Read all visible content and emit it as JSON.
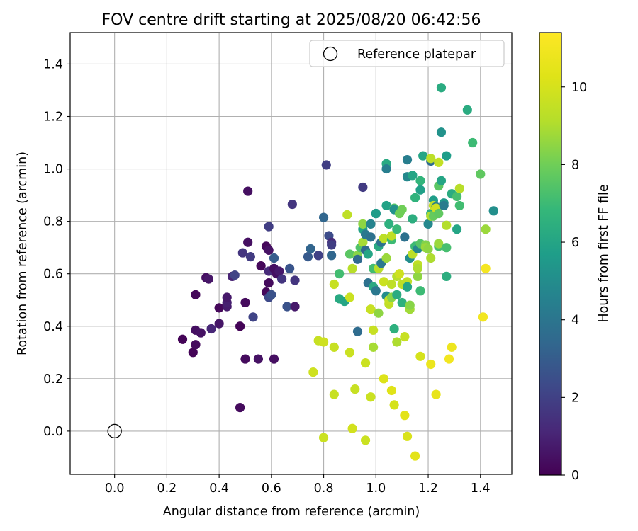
{
  "chart_data": {
    "type": "scatter",
    "title": "FOV centre drift starting at 2025/08/20 06:42:56",
    "xlabel": "Angular distance from reference (arcmin)",
    "ylabel": "Rotation from reference (arcmin)",
    "xlim": [
      -0.17,
      1.52
    ],
    "ylim": [
      -0.165,
      1.52
    ],
    "xticks": [
      0.0,
      0.2,
      0.4,
      0.6,
      0.8,
      1.0,
      1.2,
      1.4
    ],
    "yticks": [
      0.0,
      0.2,
      0.4,
      0.6,
      0.8,
      1.0,
      1.2,
      1.4
    ],
    "grid": true,
    "legend": {
      "location": "top-right",
      "entries": [
        {
          "label": "Reference platepar",
          "marker": "open-circle"
        }
      ]
    },
    "reference_point": {
      "x": 0.0,
      "y": 0.0
    },
    "colorbar": {
      "label": "Hours from first FF file",
      "colormap": "viridis",
      "range": [
        0,
        11.4
      ],
      "ticks": [
        0,
        2,
        4,
        6,
        8,
        10
      ]
    },
    "points": [
      {
        "x": 0.26,
        "y": 0.35,
        "c": 0.1
      },
      {
        "x": 0.3,
        "y": 0.3,
        "c": 0.1
      },
      {
        "x": 0.31,
        "y": 0.33,
        "c": 0.3
      },
      {
        "x": 0.31,
        "y": 0.385,
        "c": 0.4
      },
      {
        "x": 0.33,
        "y": 0.375,
        "c": 0.5
      },
      {
        "x": 0.31,
        "y": 0.52,
        "c": 0.2
      },
      {
        "x": 0.35,
        "y": 0.585,
        "c": 0.4
      },
      {
        "x": 0.36,
        "y": 0.58,
        "c": 0.6
      },
      {
        "x": 0.37,
        "y": 0.39,
        "c": 1.1
      },
      {
        "x": 0.4,
        "y": 0.47,
        "c": 0.2
      },
      {
        "x": 0.4,
        "y": 0.41,
        "c": 0.6
      },
      {
        "x": 0.43,
        "y": 0.475,
        "c": 0.8
      },
      {
        "x": 0.43,
        "y": 0.49,
        "c": 0.9
      },
      {
        "x": 0.43,
        "y": 0.51,
        "c": 0.7
      },
      {
        "x": 0.45,
        "y": 0.59,
        "c": 1.0
      },
      {
        "x": 0.46,
        "y": 0.595,
        "c": 2.1
      },
      {
        "x": 0.48,
        "y": 0.09,
        "c": 0.3
      },
      {
        "x": 0.48,
        "y": 0.4,
        "c": 0.1
      },
      {
        "x": 0.49,
        "y": 0.68,
        "c": 1.6
      },
      {
        "x": 0.5,
        "y": 0.275,
        "c": 0.3
      },
      {
        "x": 0.5,
        "y": 0.49,
        "c": 0.3
      },
      {
        "x": 0.51,
        "y": 0.915,
        "c": 0.4
      },
      {
        "x": 0.51,
        "y": 0.72,
        "c": 0.4
      },
      {
        "x": 0.52,
        "y": 0.665,
        "c": 1.8
      },
      {
        "x": 0.53,
        "y": 0.435,
        "c": 2.1
      },
      {
        "x": 0.55,
        "y": 0.275,
        "c": 0.5
      },
      {
        "x": 0.56,
        "y": 0.63,
        "c": 0.2
      },
      {
        "x": 0.58,
        "y": 0.705,
        "c": 0.2
      },
      {
        "x": 0.58,
        "y": 0.53,
        "c": 0.2
      },
      {
        "x": 0.59,
        "y": 0.565,
        "c": 0.3
      },
      {
        "x": 0.59,
        "y": 0.61,
        "c": 1.2
      },
      {
        "x": 0.59,
        "y": 0.69,
        "c": 0.5
      },
      {
        "x": 0.59,
        "y": 0.78,
        "c": 1.9
      },
      {
        "x": 0.59,
        "y": 0.51,
        "c": 2.3
      },
      {
        "x": 0.6,
        "y": 0.52,
        "c": 2.6
      },
      {
        "x": 0.61,
        "y": 0.275,
        "c": 0.4
      },
      {
        "x": 0.61,
        "y": 0.66,
        "c": 3.0
      },
      {
        "x": 0.61,
        "y": 0.62,
        "c": 0.4
      },
      {
        "x": 0.62,
        "y": 0.6,
        "c": 0.4
      },
      {
        "x": 0.63,
        "y": 0.61,
        "c": 0.7
      },
      {
        "x": 0.64,
        "y": 0.58,
        "c": 1.6
      },
      {
        "x": 0.66,
        "y": 0.475,
        "c": 2.6
      },
      {
        "x": 0.67,
        "y": 0.62,
        "c": 2.7
      },
      {
        "x": 0.68,
        "y": 0.865,
        "c": 1.6
      },
      {
        "x": 0.69,
        "y": 0.575,
        "c": 1.6
      },
      {
        "x": 0.69,
        "y": 0.475,
        "c": 0.7
      },
      {
        "x": 0.74,
        "y": 0.665,
        "c": 2.9
      },
      {
        "x": 0.75,
        "y": 0.695,
        "c": 3.3
      },
      {
        "x": 0.78,
        "y": 0.67,
        "c": 2.0
      },
      {
        "x": 0.8,
        "y": 0.815,
        "c": 3.4
      },
      {
        "x": 0.81,
        "y": 1.015,
        "c": 1.9
      },
      {
        "x": 0.82,
        "y": 0.745,
        "c": 2.4
      },
      {
        "x": 0.83,
        "y": 0.72,
        "c": 1.3
      },
      {
        "x": 0.83,
        "y": 0.67,
        "c": 3.4
      },
      {
        "x": 0.83,
        "y": 0.71,
        "c": 1.9
      },
      {
        "x": 0.76,
        "y": 0.225,
        "c": 9.8
      },
      {
        "x": 0.78,
        "y": 0.345,
        "c": 9.6
      },
      {
        "x": 0.8,
        "y": 0.34,
        "c": 9.8
      },
      {
        "x": 0.8,
        "y": -0.025,
        "c": 9.7
      },
      {
        "x": 0.84,
        "y": 0.32,
        "c": 9.6
      },
      {
        "x": 0.84,
        "y": 0.14,
        "c": 9.6
      },
      {
        "x": 0.84,
        "y": 0.56,
        "c": 9.6
      },
      {
        "x": 0.86,
        "y": 0.505,
        "c": 6.2
      },
      {
        "x": 0.86,
        "y": 0.6,
        "c": 7.1
      },
      {
        "x": 0.88,
        "y": 0.495,
        "c": 6.0
      },
      {
        "x": 0.89,
        "y": 0.825,
        "c": 9.4
      },
      {
        "x": 0.9,
        "y": 0.675,
        "c": 7.6
      },
      {
        "x": 0.9,
        "y": 0.3,
        "c": 9.7
      },
      {
        "x": 0.9,
        "y": 0.51,
        "c": 9.7
      },
      {
        "x": 0.91,
        "y": 0.01,
        "c": 9.9
      },
      {
        "x": 0.91,
        "y": 0.62,
        "c": 9.2
      },
      {
        "x": 0.92,
        "y": 0.16,
        "c": 9.6
      },
      {
        "x": 0.93,
        "y": 0.38,
        "c": 3.6
      },
      {
        "x": 0.93,
        "y": 0.67,
        "c": 8.4
      },
      {
        "x": 0.93,
        "y": 0.655,
        "c": 3.5
      },
      {
        "x": 0.94,
        "y": 0.7,
        "c": 7.4
      },
      {
        "x": 0.95,
        "y": 0.93,
        "c": 1.8
      },
      {
        "x": 0.95,
        "y": 0.72,
        "c": 8.9
      },
      {
        "x": 0.95,
        "y": 0.77,
        "c": 5.9
      },
      {
        "x": 0.95,
        "y": 0.79,
        "c": 8.5
      },
      {
        "x": 0.96,
        "y": 0.75,
        "c": 4.1
      },
      {
        "x": 0.96,
        "y": -0.035,
        "c": 9.7
      },
      {
        "x": 0.96,
        "y": 0.26,
        "c": 9.7
      },
      {
        "x": 0.96,
        "y": 0.69,
        "c": 3.5
      },
      {
        "x": 0.97,
        "y": 0.565,
        "c": 3.8
      },
      {
        "x": 0.97,
        "y": 0.675,
        "c": 6.0
      },
      {
        "x": 0.98,
        "y": 0.465,
        "c": 9.6
      },
      {
        "x": 0.98,
        "y": 0.13,
        "c": 9.7
      },
      {
        "x": 0.98,
        "y": 0.74,
        "c": 3.8
      },
      {
        "x": 0.98,
        "y": 0.79,
        "c": 4.6
      },
      {
        "x": 0.99,
        "y": 0.385,
        "c": 9.6
      },
      {
        "x": 0.99,
        "y": 0.32,
        "c": 8.9
      },
      {
        "x": 0.99,
        "y": 0.55,
        "c": 6.2
      },
      {
        "x": 0.99,
        "y": 0.62,
        "c": 7.1
      },
      {
        "x": 1.0,
        "y": 0.535,
        "c": 4.1
      },
      {
        "x": 1.0,
        "y": 0.83,
        "c": 3.6
      },
      {
        "x": 1.0,
        "y": 0.83,
        "c": 5.6
      },
      {
        "x": 1.01,
        "y": 0.62,
        "c": 9.2
      },
      {
        "x": 1.01,
        "y": 0.45,
        "c": 8.5
      },
      {
        "x": 1.01,
        "y": 0.705,
        "c": 6.2
      },
      {
        "x": 1.02,
        "y": 0.72,
        "c": 3.8
      },
      {
        "x": 1.02,
        "y": 0.64,
        "c": 4.1
      },
      {
        "x": 1.03,
        "y": 0.735,
        "c": 9.3
      },
      {
        "x": 1.03,
        "y": 0.57,
        "c": 9.7
      },
      {
        "x": 1.03,
        "y": 0.2,
        "c": 10.2
      },
      {
        "x": 1.04,
        "y": 1.02,
        "c": 6.2
      },
      {
        "x": 1.04,
        "y": 1.0,
        "c": 4.4
      },
      {
        "x": 1.04,
        "y": 0.515,
        "c": 5.0
      },
      {
        "x": 1.04,
        "y": 0.86,
        "c": 5.9
      },
      {
        "x": 1.04,
        "y": 0.66,
        "c": 8.7
      },
      {
        "x": 1.05,
        "y": 0.485,
        "c": 9.4
      },
      {
        "x": 1.05,
        "y": 0.5,
        "c": 9.6
      },
      {
        "x": 1.05,
        "y": 0.79,
        "c": 6.5
      },
      {
        "x": 1.06,
        "y": 0.73,
        "c": 7.0
      },
      {
        "x": 1.06,
        "y": 0.155,
        "c": 10.3
      },
      {
        "x": 1.06,
        "y": 0.745,
        "c": 9.4
      },
      {
        "x": 1.06,
        "y": 0.51,
        "c": 8.4
      },
      {
        "x": 1.06,
        "y": 0.56,
        "c": 9.4
      },
      {
        "x": 1.07,
        "y": 0.85,
        "c": 7.4
      },
      {
        "x": 1.07,
        "y": 0.39,
        "c": 6.5
      },
      {
        "x": 1.07,
        "y": 0.1,
        "c": 10.0
      },
      {
        "x": 1.07,
        "y": 0.845,
        "c": 5.2
      },
      {
        "x": 1.08,
        "y": 0.34,
        "c": 9.0
      },
      {
        "x": 1.08,
        "y": 0.59,
        "c": 9.2
      },
      {
        "x": 1.08,
        "y": 0.52,
        "c": 6.3
      },
      {
        "x": 1.08,
        "y": 0.77,
        "c": 6.9
      },
      {
        "x": 1.09,
        "y": 0.6,
        "c": 9.8
      },
      {
        "x": 1.09,
        "y": 0.83,
        "c": 8.0
      },
      {
        "x": 1.1,
        "y": 0.49,
        "c": 6.5
      },
      {
        "x": 1.1,
        "y": 0.845,
        "c": 8.0
      },
      {
        "x": 1.1,
        "y": 0.56,
        "c": 9.4
      },
      {
        "x": 1.11,
        "y": 0.74,
        "c": 3.8
      },
      {
        "x": 1.11,
        "y": 0.36,
        "c": 9.6
      },
      {
        "x": 1.11,
        "y": 0.06,
        "c": 10.4
      },
      {
        "x": 1.12,
        "y": 1.035,
        "c": 4.4
      },
      {
        "x": 1.12,
        "y": 0.97,
        "c": 4.8
      },
      {
        "x": 1.12,
        "y": 0.57,
        "c": 9.4
      },
      {
        "x": 1.12,
        "y": 0.55,
        "c": 6.0
      },
      {
        "x": 1.12,
        "y": -0.02,
        "c": 10.1
      },
      {
        "x": 1.13,
        "y": 0.465,
        "c": 8.8
      },
      {
        "x": 1.13,
        "y": 0.48,
        "c": 8.4
      },
      {
        "x": 1.13,
        "y": 0.66,
        "c": 5.0
      },
      {
        "x": 1.14,
        "y": 0.81,
        "c": 6.4
      },
      {
        "x": 1.14,
        "y": 0.675,
        "c": 9.3
      },
      {
        "x": 1.14,
        "y": 0.975,
        "c": 6.0
      },
      {
        "x": 1.15,
        "y": 0.705,
        "c": 7.0
      },
      {
        "x": 1.15,
        "y": 0.89,
        "c": 6.6
      },
      {
        "x": 1.15,
        "y": -0.095,
        "c": 10.4
      },
      {
        "x": 1.16,
        "y": 0.59,
        "c": 8.5
      },
      {
        "x": 1.16,
        "y": 0.695,
        "c": 4.8
      },
      {
        "x": 1.16,
        "y": 0.635,
        "c": 9.4
      },
      {
        "x": 1.16,
        "y": 0.62,
        "c": 9.0
      },
      {
        "x": 1.17,
        "y": 0.285,
        "c": 10.0
      },
      {
        "x": 1.17,
        "y": 0.535,
        "c": 7.0
      },
      {
        "x": 1.17,
        "y": 0.715,
        "c": 7.5
      },
      {
        "x": 1.17,
        "y": 0.92,
        "c": 5.8
      },
      {
        "x": 1.17,
        "y": 0.955,
        "c": 6.7
      },
      {
        "x": 1.18,
        "y": 1.05,
        "c": 6.0
      },
      {
        "x": 1.19,
        "y": 0.71,
        "c": 8.3
      },
      {
        "x": 1.19,
        "y": 0.7,
        "c": 8.7
      },
      {
        "x": 1.2,
        "y": 0.79,
        "c": 4.8
      },
      {
        "x": 1.2,
        "y": 0.695,
        "c": 8.5
      },
      {
        "x": 1.21,
        "y": 1.03,
        "c": 3.6
      },
      {
        "x": 1.21,
        "y": 0.83,
        "c": 6.3
      },
      {
        "x": 1.21,
        "y": 0.255,
        "c": 10.7
      },
      {
        "x": 1.21,
        "y": 0.82,
        "c": 9.0
      },
      {
        "x": 1.21,
        "y": 1.04,
        "c": 9.3
      },
      {
        "x": 1.21,
        "y": 0.66,
        "c": 9.0
      },
      {
        "x": 1.22,
        "y": 0.88,
        "c": 5.7
      },
      {
        "x": 1.22,
        "y": 0.82,
        "c": 7.8
      },
      {
        "x": 1.22,
        "y": 0.86,
        "c": 9.5
      },
      {
        "x": 1.23,
        "y": 0.14,
        "c": 10.6
      },
      {
        "x": 1.23,
        "y": 0.855,
        "c": 4.4
      },
      {
        "x": 1.23,
        "y": 0.85,
        "c": 9.8
      },
      {
        "x": 1.24,
        "y": 0.705,
        "c": 7.2
      },
      {
        "x": 1.24,
        "y": 0.935,
        "c": 7.6
      },
      {
        "x": 1.24,
        "y": 1.025,
        "c": 9.5
      },
      {
        "x": 1.24,
        "y": 0.715,
        "c": 8.7
      },
      {
        "x": 1.24,
        "y": 0.83,
        "c": 7.7
      },
      {
        "x": 1.25,
        "y": 0.955,
        "c": 6.0
      },
      {
        "x": 1.25,
        "y": 1.14,
        "c": 5.2
      },
      {
        "x": 1.25,
        "y": 1.31,
        "c": 6.3
      },
      {
        "x": 1.26,
        "y": 0.87,
        "c": 5.4
      },
      {
        "x": 1.26,
        "y": 0.86,
        "c": 4.3
      },
      {
        "x": 1.27,
        "y": 1.05,
        "c": 5.7
      },
      {
        "x": 1.27,
        "y": 0.7,
        "c": 7.2
      },
      {
        "x": 1.27,
        "y": 0.59,
        "c": 6.4
      },
      {
        "x": 1.27,
        "y": 0.785,
        "c": 9.1
      },
      {
        "x": 1.28,
        "y": 0.275,
        "c": 11.0
      },
      {
        "x": 1.29,
        "y": 0.905,
        "c": 6.3
      },
      {
        "x": 1.29,
        "y": 0.32,
        "c": 10.8
      },
      {
        "x": 1.31,
        "y": 0.895,
        "c": 7.2
      },
      {
        "x": 1.31,
        "y": 0.77,
        "c": 6.0
      },
      {
        "x": 1.32,
        "y": 0.86,
        "c": 7.1
      },
      {
        "x": 1.32,
        "y": 0.925,
        "c": 9.2
      },
      {
        "x": 1.35,
        "y": 1.225,
        "c": 6.3
      },
      {
        "x": 1.37,
        "y": 1.1,
        "c": 7.0
      },
      {
        "x": 1.4,
        "y": 0.98,
        "c": 7.7
      },
      {
        "x": 1.41,
        "y": 0.435,
        "c": 11.0
      },
      {
        "x": 1.42,
        "y": 0.77,
        "c": 8.7
      },
      {
        "x": 1.42,
        "y": 0.62,
        "c": 11.1
      },
      {
        "x": 1.45,
        "y": 0.84,
        "c": 5.1
      }
    ]
  }
}
